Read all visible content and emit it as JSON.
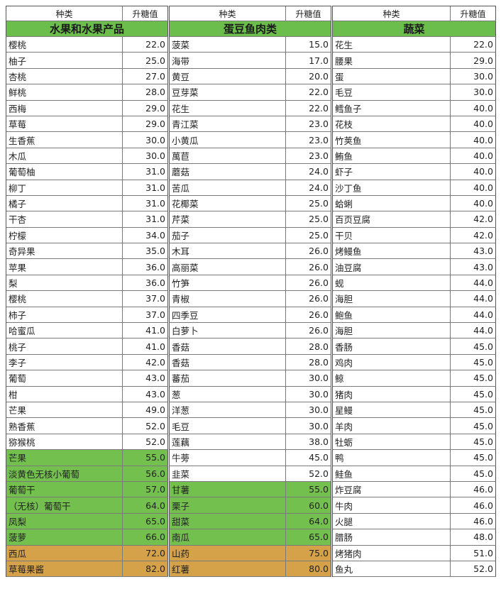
{
  "header": {
    "name_label": "种类",
    "value_label": "升糖值"
  },
  "groups": [
    {
      "title": "水果和水果产品",
      "rows": [
        {
          "name": "樱桃",
          "value": "22.0"
        },
        {
          "name": "柚子",
          "value": "25.0"
        },
        {
          "name": "杏桃",
          "value": "27.0"
        },
        {
          "name": "鲜桃",
          "value": "28.0"
        },
        {
          "name": "西梅",
          "value": "29.0"
        },
        {
          "name": "草莓",
          "value": "29.0"
        },
        {
          "name": "生香蕉",
          "value": "30.0"
        },
        {
          "name": "木瓜",
          "value": "30.0"
        },
        {
          "name": "葡萄柚",
          "value": "31.0"
        },
        {
          "name": "柳丁",
          "value": "31.0"
        },
        {
          "name": "橘子",
          "value": "31.0"
        },
        {
          "name": "干杏",
          "value": "31.0"
        },
        {
          "name": "柠檬",
          "value": "34.0"
        },
        {
          "name": "奇异果",
          "value": "35.0"
        },
        {
          "name": "苹果",
          "value": "36.0"
        },
        {
          "name": "梨",
          "value": "36.0"
        },
        {
          "name": "樱桃",
          "value": "37.0"
        },
        {
          "name": "柿子",
          "value": "37.0"
        },
        {
          "name": "哈蜜瓜",
          "value": "41.0"
        },
        {
          "name": "桃子",
          "value": "41.0"
        },
        {
          "name": "李子",
          "value": "42.0"
        },
        {
          "name": "葡萄",
          "value": "43.0"
        },
        {
          "name": "柑",
          "value": "43.0"
        },
        {
          "name": "芒果",
          "value": "49.0"
        },
        {
          "name": "熟香蕉",
          "value": "52.0"
        },
        {
          "name": "猕猴桃",
          "value": "52.0"
        },
        {
          "name": "芒果",
          "value": "55.0",
          "hl": "green"
        },
        {
          "name": "淡黄色无核小葡萄",
          "value": "56.0",
          "hl": "green"
        },
        {
          "name": "葡萄干",
          "value": "57.0",
          "hl": "green"
        },
        {
          "name": "（无核）葡萄干",
          "value": "64.0",
          "hl": "green"
        },
        {
          "name": "凤梨",
          "value": "65.0",
          "hl": "green"
        },
        {
          "name": "菠萝",
          "value": "66.0",
          "hl": "green"
        },
        {
          "name": "西瓜",
          "value": "72.0",
          "hl": "orange"
        },
        {
          "name": "草莓果酱",
          "value": "82.0",
          "hl": "orange"
        }
      ]
    },
    {
      "title": "蛋豆鱼肉类",
      "rows": [
        {
          "name": "菠菜",
          "value": "15.0"
        },
        {
          "name": "海带",
          "value": "17.0"
        },
        {
          "name": "黄豆",
          "value": "20.0"
        },
        {
          "name": "豆芽菜",
          "value": "22.0"
        },
        {
          "name": "花生",
          "value": "22.0"
        },
        {
          "name": "青江菜",
          "value": "23.0"
        },
        {
          "name": "小黄瓜",
          "value": "23.0"
        },
        {
          "name": "萬苣",
          "value": "23.0"
        },
        {
          "name": "蘑菇",
          "value": "24.0"
        },
        {
          "name": "苦瓜",
          "value": "24.0"
        },
        {
          "name": "花椰菜",
          "value": "25.0"
        },
        {
          "name": "芹菜",
          "value": "25.0"
        },
        {
          "name": "茄子",
          "value": "25.0"
        },
        {
          "name": "木耳",
          "value": "26.0"
        },
        {
          "name": "高丽菜",
          "value": "26.0"
        },
        {
          "name": "竹笋",
          "value": "26.0"
        },
        {
          "name": "青椒",
          "value": "26.0"
        },
        {
          "name": "四季豆",
          "value": "26.0"
        },
        {
          "name": "白萝卜",
          "value": "26.0"
        },
        {
          "name": "香菇",
          "value": "28.0"
        },
        {
          "name": "香菇",
          "value": "28.0"
        },
        {
          "name": "蕃茄",
          "value": "30.0"
        },
        {
          "name": "葱",
          "value": "30.0"
        },
        {
          "name": "洋葱",
          "value": "30.0"
        },
        {
          "name": "毛豆",
          "value": "30.0"
        },
        {
          "name": "莲藕",
          "value": "38.0"
        },
        {
          "name": "牛蒡",
          "value": "45.0"
        },
        {
          "name": "韭菜",
          "value": "52.0"
        },
        {
          "name": "甘薯",
          "value": "55.0",
          "hl": "green"
        },
        {
          "name": "栗子",
          "value": "60.0",
          "hl": "green"
        },
        {
          "name": "甜菜",
          "value": "64.0",
          "hl": "green"
        },
        {
          "name": "南瓜",
          "value": "65.0",
          "hl": "green"
        },
        {
          "name": "山药",
          "value": "75.0",
          "hl": "orange"
        },
        {
          "name": "红薯",
          "value": "80.0",
          "hl": "orange"
        }
      ]
    },
    {
      "title": "蔬菜",
      "rows": [
        {
          "name": "花生",
          "value": "22.0"
        },
        {
          "name": "腰果",
          "value": "29.0"
        },
        {
          "name": "蛋",
          "value": "30.0"
        },
        {
          "name": "毛豆",
          "value": "30.0"
        },
        {
          "name": "鳕鱼子",
          "value": "40.0"
        },
        {
          "name": "花枝",
          "value": "40.0"
        },
        {
          "name": "竹荚鱼",
          "value": "40.0"
        },
        {
          "name": "鲔鱼",
          "value": "40.0"
        },
        {
          "name": "虾子",
          "value": "40.0"
        },
        {
          "name": "沙丁鱼",
          "value": "40.0"
        },
        {
          "name": "蛤蜊",
          "value": "40.0"
        },
        {
          "name": "百页豆腐",
          "value": "42.0"
        },
        {
          "name": "干贝",
          "value": "42.0"
        },
        {
          "name": "烤鳗鱼",
          "value": "43.0"
        },
        {
          "name": "油豆腐",
          "value": "43.0"
        },
        {
          "name": "蚬",
          "value": "44.0"
        },
        {
          "name": "海胆",
          "value": "44.0"
        },
        {
          "name": "鲍鱼",
          "value": "44.0"
        },
        {
          "name": "海胆",
          "value": "44.0"
        },
        {
          "name": "香肠",
          "value": "45.0"
        },
        {
          "name": "鸡肉",
          "value": "45.0"
        },
        {
          "name": "鲸",
          "value": "45.0"
        },
        {
          "name": "猪肉",
          "value": "45.0"
        },
        {
          "name": "星鳗",
          "value": "45.0"
        },
        {
          "name": "羊肉",
          "value": "45.0"
        },
        {
          "name": "牡蛎",
          "value": "45.0"
        },
        {
          "name": "鸭",
          "value": "45.0"
        },
        {
          "name": "鲑鱼",
          "value": "45.0"
        },
        {
          "name": "炸豆腐",
          "value": "46.0"
        },
        {
          "name": "牛肉",
          "value": "46.0"
        },
        {
          "name": "火腿",
          "value": "46.0"
        },
        {
          "name": "腊肠",
          "value": "48.0"
        },
        {
          "name": "烤猪肉",
          "value": "51.0"
        },
        {
          "name": "鱼丸",
          "value": "52.0"
        }
      ]
    }
  ],
  "colors": {
    "category_band": "#6bbd4c",
    "high_green": "#74c04f",
    "high_orange": "#d5a24a"
  }
}
